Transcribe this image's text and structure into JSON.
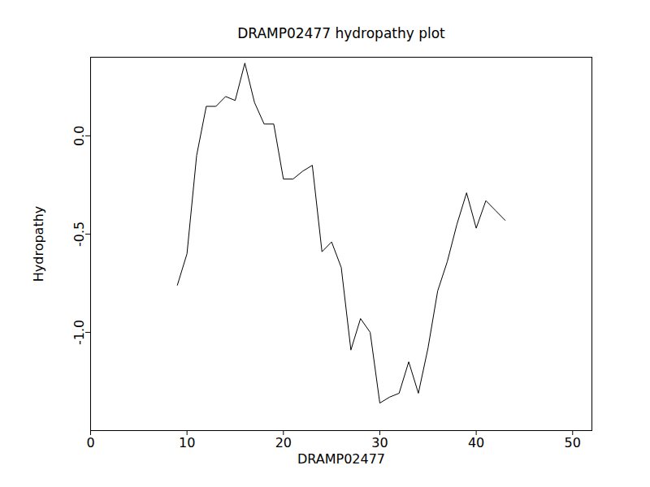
{
  "chart_data": {
    "type": "line",
    "title": "DRAMP02477 hydropathy plot",
    "x_label": "DRAMP02477",
    "y_label": "Hydropathy",
    "x": [
      9,
      10,
      11,
      12,
      13,
      14,
      15,
      16,
      17,
      18,
      19,
      20,
      21,
      22,
      23,
      24,
      25,
      26,
      27,
      28,
      29,
      30,
      31,
      32,
      33,
      34,
      35,
      36,
      37,
      38,
      39,
      40,
      41,
      42,
      43
    ],
    "values": [
      -0.76,
      -0.6,
      -0.1,
      0.15,
      0.15,
      0.2,
      0.18,
      0.37,
      0.17,
      0.06,
      0.06,
      -0.22,
      -0.22,
      -0.18,
      -0.15,
      -0.59,
      -0.54,
      -0.67,
      -1.09,
      -0.93,
      -1.0,
      -1.36,
      -1.33,
      -1.31,
      -1.15,
      -1.31,
      -1.08,
      -0.79,
      -0.64,
      -0.45,
      -0.29,
      -0.47,
      -0.33,
      -0.38,
      -0.43
    ],
    "color": "#000000",
    "xlim": [
      0,
      52
    ],
    "xticks": [
      0,
      10,
      20,
      30,
      40,
      50
    ],
    "ylim": [
      -1.5,
      0.4
    ],
    "yticks": [
      {
        "value": 0,
        "label": "0.0"
      },
      {
        "value": -0.5,
        "label": "-0.5"
      },
      {
        "value": -1,
        "label": "-1.0"
      }
    ],
    "grid": false
  }
}
